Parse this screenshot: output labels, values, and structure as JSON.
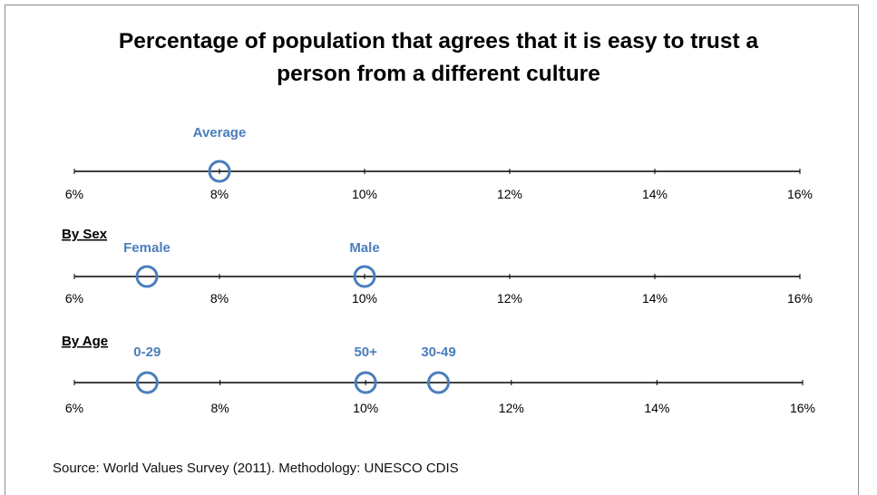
{
  "title_line1": "Percentage of population that agrees that it is easy to trust a",
  "title_line2": "person from a different culture",
  "source": "Source: World Values Survey (2011). Methodology: UNESCO CDIS",
  "colors": {
    "marker": "#4a7ebb",
    "axis": "#000000",
    "label": "#4a7ebb"
  },
  "chart_data": [
    {
      "type": "scatter",
      "title": "",
      "xlim": [
        6,
        16
      ],
      "tick_values": [
        6,
        8,
        10,
        12,
        14,
        16
      ],
      "tick_labels": [
        "6%",
        "8%",
        "10%",
        "12%",
        "14%",
        "16%"
      ],
      "points": [
        {
          "name": "Average",
          "x": 8
        }
      ]
    },
    {
      "type": "scatter",
      "title": "By Sex",
      "xlim": [
        6,
        16
      ],
      "tick_values": [
        6,
        8,
        10,
        12,
        14,
        16
      ],
      "tick_labels": [
        "6%",
        "8%",
        "10%",
        "12%",
        "14%",
        "16%"
      ],
      "points": [
        {
          "name": "Female",
          "x": 7
        },
        {
          "name": "Male",
          "x": 10
        }
      ]
    },
    {
      "type": "scatter",
      "title": "By Age",
      "xlim": [
        6,
        16
      ],
      "tick_values": [
        6,
        8,
        10,
        12,
        14,
        16
      ],
      "tick_labels": [
        "6%",
        "8%",
        "10%",
        "12%",
        "14%",
        "16%"
      ],
      "points": [
        {
          "name": "0-29",
          "x": 7
        },
        {
          "name": "50+",
          "x": 10
        },
        {
          "name": "30-49",
          "x": 11
        }
      ]
    }
  ]
}
